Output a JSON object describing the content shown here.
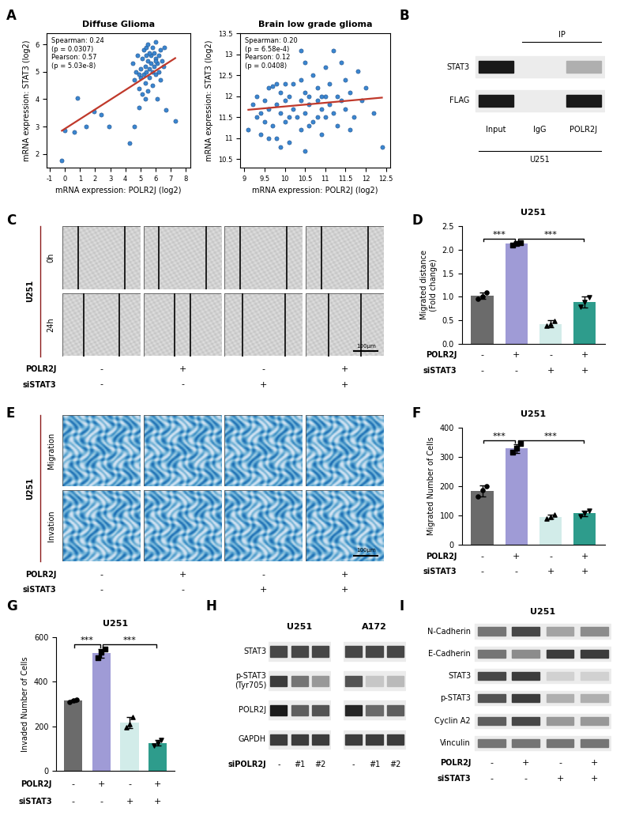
{
  "panel_labels": [
    "A",
    "B",
    "C",
    "D",
    "E",
    "F",
    "G",
    "H",
    "I"
  ],
  "chart_data": [
    {
      "type": "scatter",
      "title": "Diffuse Glioma",
      "x_label": "mRNA expression: POLR2J (log2)",
      "y_label": "mRNA expression: STAT3 (log2)",
      "annotations": [
        "Spearman: 0.24",
        "(p = 0.0307)",
        "Pearson: 0.57",
        "(p = 5.03e-8)"
      ],
      "xlim": [
        -1.2,
        8.3
      ],
      "xticks": [
        -1,
        0,
        1,
        2,
        3,
        4,
        5,
        6,
        7,
        8
      ],
      "ylim": [
        1.5,
        6.4
      ],
      "yticks": [
        2,
        3,
        4,
        5,
        6
      ],
      "grid": false,
      "series": [
        {
          "type": "scatter",
          "color": "#3a86d0",
          "x": [
            -0.2,
            0.0,
            0.6,
            0.8,
            1.4,
            1.9,
            2.4,
            2.9,
            4.3,
            4.6,
            7.3,
            4.9,
            4.5,
            4.6,
            4.7,
            4.8,
            4.9,
            5.0,
            5.0,
            5.1,
            5.1,
            5.2,
            5.2,
            5.3,
            5.3,
            5.4,
            5.4,
            5.5,
            5.5,
            5.5,
            5.6,
            5.6,
            5.7,
            5.7,
            5.8,
            5.8,
            5.9,
            5.9,
            6.0,
            6.0,
            6.0,
            6.1,
            6.1,
            6.2,
            6.2,
            6.3,
            6.3,
            6.4,
            6.5,
            6.6,
            6.7,
            5.3,
            4.9,
            5.6,
            5.8,
            6.0,
            5.4
          ],
          "values": [
            1.75,
            2.85,
            2.8,
            4.05,
            3.0,
            3.55,
            3.45,
            3.0,
            2.4,
            3.0,
            3.2,
            3.7,
            5.3,
            4.7,
            5.0,
            5.6,
            4.4,
            5.1,
            4.8,
            5.5,
            4.2,
            5.8,
            4.9,
            5.2,
            4.6,
            5.9,
            5.0,
            5.4,
            4.3,
            6.0,
            5.1,
            4.8,
            5.6,
            5.3,
            5.0,
            4.5,
            5.7,
            5.2,
            4.9,
            5.5,
            6.1,
            5.3,
            4.0,
            5.6,
            5.0,
            5.8,
            4.7,
            5.4,
            5.2,
            5.9,
            3.6,
            4.0,
            4.9,
            5.7,
            5.9,
            5.4,
            5.6
          ]
        },
        {
          "type": "line",
          "color": "#c0392b",
          "x": [
            -0.2,
            7.3
          ],
          "values": [
            2.85,
            5.5
          ]
        }
      ]
    },
    {
      "type": "scatter",
      "title": "Brain low grade glioma",
      "x_label": "mRNA expression: POLR2J (log2)",
      "y_label": "mRNA expression: STAT3 (log2)",
      "annotations": [
        "Spearman: 0.20",
        "(p = 6.58e-4)",
        "Pearson: 0.12",
        "(p = 0.0408)"
      ],
      "xlim": [
        8.9,
        12.6
      ],
      "xticks": [
        9,
        9.5,
        10,
        10.5,
        11,
        11.5,
        12,
        12.5
      ],
      "ylim": [
        10.3,
        13.5
      ],
      "yticks": [
        10.5,
        11,
        11.5,
        12,
        12.5,
        13,
        13.5
      ],
      "grid": false,
      "series": [
        {
          "type": "scatter",
          "color": "#3a86d0",
          "x": [
            9.1,
            9.2,
            9.3,
            9.3,
            9.4,
            9.4,
            9.5,
            9.5,
            9.6,
            9.6,
            9.7,
            9.7,
            9.8,
            9.8,
            9.9,
            9.9,
            10.0,
            10.0,
            10.0,
            10.1,
            10.1,
            10.2,
            10.2,
            10.3,
            10.5,
            10.4,
            10.4,
            10.5,
            10.5,
            10.5,
            10.6,
            10.6,
            10.7,
            10.7,
            10.8,
            10.8,
            10.9,
            10.9,
            11.0,
            11.0,
            11.0,
            11.1,
            11.1,
            11.2,
            11.2,
            11.3,
            11.3,
            11.4,
            11.5,
            11.5,
            11.6,
            11.7,
            11.8,
            11.9,
            12.0,
            12.2,
            12.4,
            10.4,
            9.8,
            10.6,
            11.4,
            9.9,
            10.8,
            10.4,
            11.6,
            9.6,
            10.1,
            10.9
          ],
          "values": [
            11.2,
            11.8,
            11.5,
            12.0,
            11.6,
            11.1,
            11.9,
            11.4,
            12.2,
            11.7,
            11.3,
            12.25,
            11.8,
            11.0,
            12.1,
            11.6,
            11.9,
            12.3,
            11.4,
            12.0,
            10.9,
            11.7,
            12.3,
            11.5,
            12.8,
            11.9,
            11.2,
            12.1,
            11.6,
            10.7,
            12.0,
            11.8,
            12.5,
            11.4,
            11.9,
            12.2,
            11.7,
            11.1,
            12.0,
            12.7,
            11.5,
            11.8,
            12.3,
            11.6,
            13.1,
            12.0,
            11.3,
            11.9,
            12.4,
            11.7,
            12.1,
            11.5,
            12.6,
            11.9,
            12.2,
            11.6,
            10.8,
            13.1,
            12.3,
            11.3,
            12.8,
            10.8,
            11.5,
            12.4,
            11.2,
            11.0,
            11.5,
            12.0
          ]
        },
        {
          "type": "line",
          "color": "#c0392b",
          "x": [
            9.1,
            12.4
          ],
          "values": [
            11.68,
            11.97
          ]
        }
      ]
    },
    {
      "type": "bar",
      "title": "U251",
      "y_label": "Migrated distance\n(Fold change)",
      "categories": [
        null,
        null,
        null,
        null
      ],
      "values": [
        1.02,
        2.13,
        0.42,
        0.88
      ],
      "errors": [
        0.06,
        0.03,
        0.08,
        0.12
      ],
      "points": [
        [
          0.96,
          1.0,
          1.08
        ],
        [
          2.1,
          2.13,
          2.15
        ],
        [
          0.38,
          0.42,
          0.48
        ],
        [
          0.78,
          0.88,
          0.98
        ]
      ],
      "colors": [
        "#6b6b6b",
        "#9f9bd6",
        "#d2ece9",
        "#2e9c8c"
      ],
      "ylim": [
        0,
        2.5
      ],
      "yticks": [
        {
          "value": 0,
          "label": "0.0"
        },
        0.5,
        {
          "value": 1,
          "label": "1.0"
        },
        1.5,
        {
          "value": 2,
          "label": "2.0"
        },
        2.5
      ],
      "tick_labels": "y",
      "grid": false,
      "significance": [
        {
          "text": "***",
          "from": 0,
          "to": 1
        },
        {
          "text": "***",
          "from": 1,
          "to": 3
        }
      ],
      "conditions": [
        {
          "name": "POLR2J",
          "values": [
            "-",
            "+",
            "-",
            "+"
          ]
        },
        {
          "name": "siSTAT3",
          "values": [
            "-",
            "-",
            "+",
            "+"
          ]
        }
      ]
    },
    {
      "type": "bar",
      "title": "U251",
      "y_label": "Migrated Number of Cells",
      "categories": [
        null,
        null,
        null,
        null
      ],
      "values": [
        183,
        328,
        95,
        107
      ],
      "errors": [
        18,
        15,
        7,
        10
      ],
      "points": [
        [
          165,
          185,
          200
        ],
        [
          315,
          330,
          345
        ],
        [
          90,
          95,
          102
        ],
        [
          98,
          108,
          115
        ]
      ],
      "colors": [
        "#6b6b6b",
        "#9f9bd6",
        "#d2ece9",
        "#2e9c8c"
      ],
      "ylim": [
        0,
        400
      ],
      "yticks": [
        0,
        100,
        200,
        300,
        400
      ],
      "tick_labels": "y",
      "grid": false,
      "significance": [
        {
          "text": "***",
          "from": 0,
          "to": 1
        },
        {
          "text": "***",
          "from": 1,
          "to": 3
        }
      ],
      "conditions": [
        {
          "name": "POLR2J",
          "values": [
            "-",
            "+",
            "-",
            "+"
          ]
        },
        {
          "name": "siSTAT3",
          "values": [
            "-",
            "-",
            "+",
            "+"
          ]
        }
      ]
    },
    {
      "type": "bar",
      "title": "U251",
      "y_label": "Invaded Number of Cells",
      "categories": [
        null,
        null,
        null,
        null
      ],
      "values": [
        315,
        527,
        215,
        125
      ],
      "errors": [
        5,
        20,
        25,
        12
      ],
      "points": [
        [
          310,
          315,
          320
        ],
        [
          505,
          530,
          545
        ],
        [
          195,
          210,
          240
        ],
        [
          115,
          125,
          140
        ]
      ],
      "colors": [
        "#6b6b6b",
        "#9f9bd6",
        "#d2ece9",
        "#2e9c8c"
      ],
      "ylim": [
        0,
        600
      ],
      "yticks": [
        0,
        200,
        400,
        600
      ],
      "tick_labels": "y",
      "grid": false,
      "significance": [
        {
          "text": "***",
          "from": 0,
          "to": 1
        },
        {
          "text": "***",
          "from": 1,
          "to": 3
        }
      ],
      "conditions": [
        {
          "name": "POLR2J",
          "values": [
            "-",
            "+",
            "-",
            "+"
          ]
        },
        {
          "name": "siSTAT3",
          "values": [
            "-",
            "-",
            "+",
            "+"
          ]
        }
      ]
    }
  ],
  "images": {
    "C": {
      "cell_line": "U251",
      "rows": [
        "0h",
        "24h"
      ],
      "scale_bar": "100μm",
      "wound_width": [
        [
          0.6,
          0.6,
          0.6,
          0.6
        ],
        [
          0.45,
          0.2,
          0.55,
          0.42
        ]
      ],
      "conditions": [
        {
          "name": "POLR2J",
          "values": [
            "-",
            "+",
            "-",
            "+"
          ]
        },
        {
          "name": "siSTAT3",
          "values": [
            "-",
            "-",
            "+",
            "+"
          ]
        }
      ]
    },
    "E": {
      "cell_line": "U251",
      "rows": [
        "Migration",
        "Invation"
      ],
      "scale_bar": "100μm",
      "conditions": [
        {
          "name": "POLR2J",
          "values": [
            "-",
            "+",
            "-",
            "+"
          ]
        },
        {
          "name": "siSTAT3",
          "values": [
            "-",
            "-",
            "+",
            "+"
          ]
        }
      ]
    }
  },
  "blots": {
    "B": {
      "rows": [
        "STAT3",
        "FLAG"
      ],
      "lanes": [
        "Input",
        "IgG",
        "POLR2J"
      ],
      "group": "IP",
      "group_lanes": [
        1,
        2
      ],
      "cell_line": "U251",
      "intensity": [
        [
          1.0,
          0.0,
          0.35
        ],
        [
          1.0,
          0.0,
          1.0
        ]
      ]
    },
    "H": {
      "rows": [
        "STAT3",
        "p-STAT3\n(Tyr705)",
        "POLR2J",
        "GAPDH"
      ],
      "treatment": "siPOLR2J",
      "lanes": [
        "-",
        "#1",
        "#2"
      ],
      "blocks": [
        {
          "cell_line": "U251",
          "intensity": [
            [
              0.8,
              0.8,
              0.8
            ],
            [
              0.85,
              0.6,
              0.45
            ],
            [
              1.0,
              0.7,
              0.75
            ],
            [
              0.85,
              0.85,
              0.85
            ]
          ]
        },
        {
          "cell_line": "A172",
          "intensity": [
            [
              0.8,
              0.8,
              0.8
            ],
            [
              0.75,
              0.25,
              0.3
            ],
            [
              0.95,
              0.65,
              0.7
            ],
            [
              0.85,
              0.85,
              0.85
            ]
          ]
        }
      ]
    },
    "I": {
      "cell_line": "U251",
      "rows": [
        "N-Cadherin",
        "E-Cadherin",
        "STAT3",
        "p-STAT3",
        "Cyclin A2",
        "Vinculin"
      ],
      "intensity": [
        [
          0.6,
          0.8,
          0.4,
          0.5
        ],
        [
          0.6,
          0.5,
          0.85,
          0.85
        ],
        [
          0.8,
          0.85,
          0.2,
          0.2
        ],
        [
          0.75,
          0.85,
          0.35,
          0.35
        ],
        [
          0.7,
          0.8,
          0.45,
          0.45
        ],
        [
          0.6,
          0.6,
          0.6,
          0.6
        ]
      ],
      "conditions": [
        {
          "name": "POLR2J",
          "values": [
            "-",
            "+",
            "-",
            "+"
          ]
        },
        {
          "name": "siSTAT3",
          "values": [
            "-",
            "-",
            "+",
            "+"
          ]
        }
      ]
    }
  }
}
